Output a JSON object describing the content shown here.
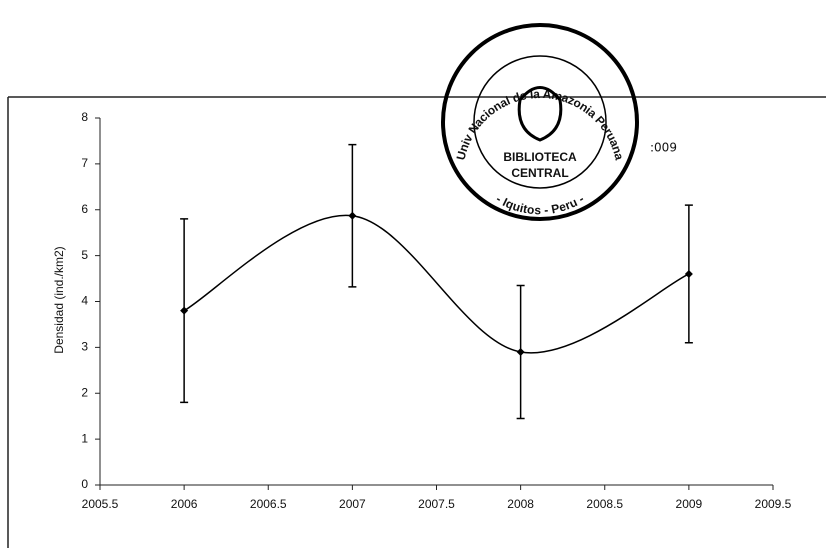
{
  "chart_data": {
    "type": "line",
    "ylabel": "Densidad (ind./km2)",
    "x": [
      2006,
      2007,
      2008,
      2009
    ],
    "values": [
      3.8,
      5.87,
      2.9,
      4.6
    ],
    "errors": [
      2.0,
      1.55,
      1.45,
      1.5
    ],
    "color": "#000000",
    "xlim": [
      2005.5,
      2009.5
    ],
    "xticks": [
      2005.5,
      2006,
      2006.5,
      2007,
      2007.5,
      2008,
      2008.5,
      2009,
      2009.5
    ],
    "ylim": [
      0,
      8
    ],
    "yticks": [
      0,
      1,
      2,
      3,
      4,
      5,
      6,
      7,
      8
    ],
    "grid": false,
    "smooth": true
  },
  "stamp": {
    "ring": "Univ Nacional de la Amazonia Peruana",
    "line1": "BIBLIOTECA",
    "line2": "CENTRAL",
    "bottom": "- Iquitos - Peru -",
    "number": ":009"
  }
}
